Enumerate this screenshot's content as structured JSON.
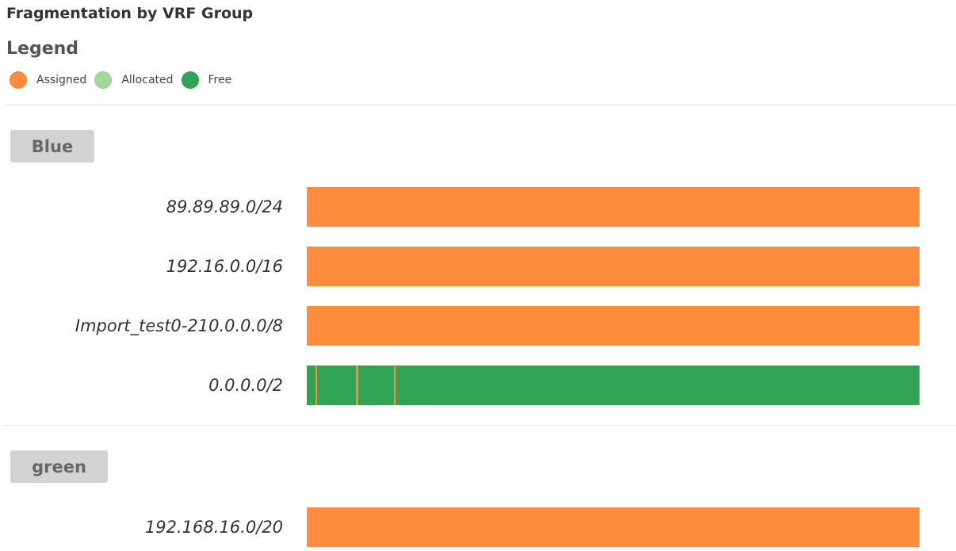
{
  "title": "Fragmentation by VRF Group",
  "legend": {
    "title": "Legend",
    "items": [
      {
        "label": "Assigned",
        "color": "#fd8c3c"
      },
      {
        "label": "Allocated",
        "color": "#a1d99b"
      },
      {
        "label": "Free",
        "color": "#31a354"
      }
    ]
  },
  "chart_data": {
    "type": "bar",
    "title": "Fragmentation by VRF Group",
    "orientation": "horizontal-stacked",
    "unit": "fraction of subnet",
    "legend": [
      "Assigned",
      "Allocated",
      "Free"
    ],
    "groups": [
      {
        "name": "Blue",
        "rows": [
          {
            "label": "89.89.89.0/24",
            "segments": [
              {
                "status": "Assigned",
                "start": 0.0,
                "end": 1.0
              }
            ]
          },
          {
            "label": "192.16.0.0/16",
            "segments": [
              {
                "status": "Assigned",
                "start": 0.0,
                "end": 1.0
              }
            ]
          },
          {
            "label": "Import_test0-210.0.0.0/8",
            "segments": [
              {
                "status": "Assigned",
                "start": 0.0,
                "end": 1.0
              }
            ]
          },
          {
            "label": "0.0.0.0/2",
            "segments": [
              {
                "status": "Free",
                "start": 0.0,
                "end": 1.0
              },
              {
                "status": "Assigned",
                "start": 0.0147,
                "end": 0.0173
              },
              {
                "status": "Assigned",
                "start": 0.0802,
                "end": 0.0841
              },
              {
                "status": "Assigned",
                "start": 0.1423,
                "end": 0.1449
              }
            ]
          }
        ]
      },
      {
        "name": "green",
        "rows": [
          {
            "label": "192.168.16.0/20",
            "segments": [
              {
                "status": "Assigned",
                "start": 0.0,
                "end": 1.0
              }
            ]
          }
        ]
      }
    ]
  }
}
